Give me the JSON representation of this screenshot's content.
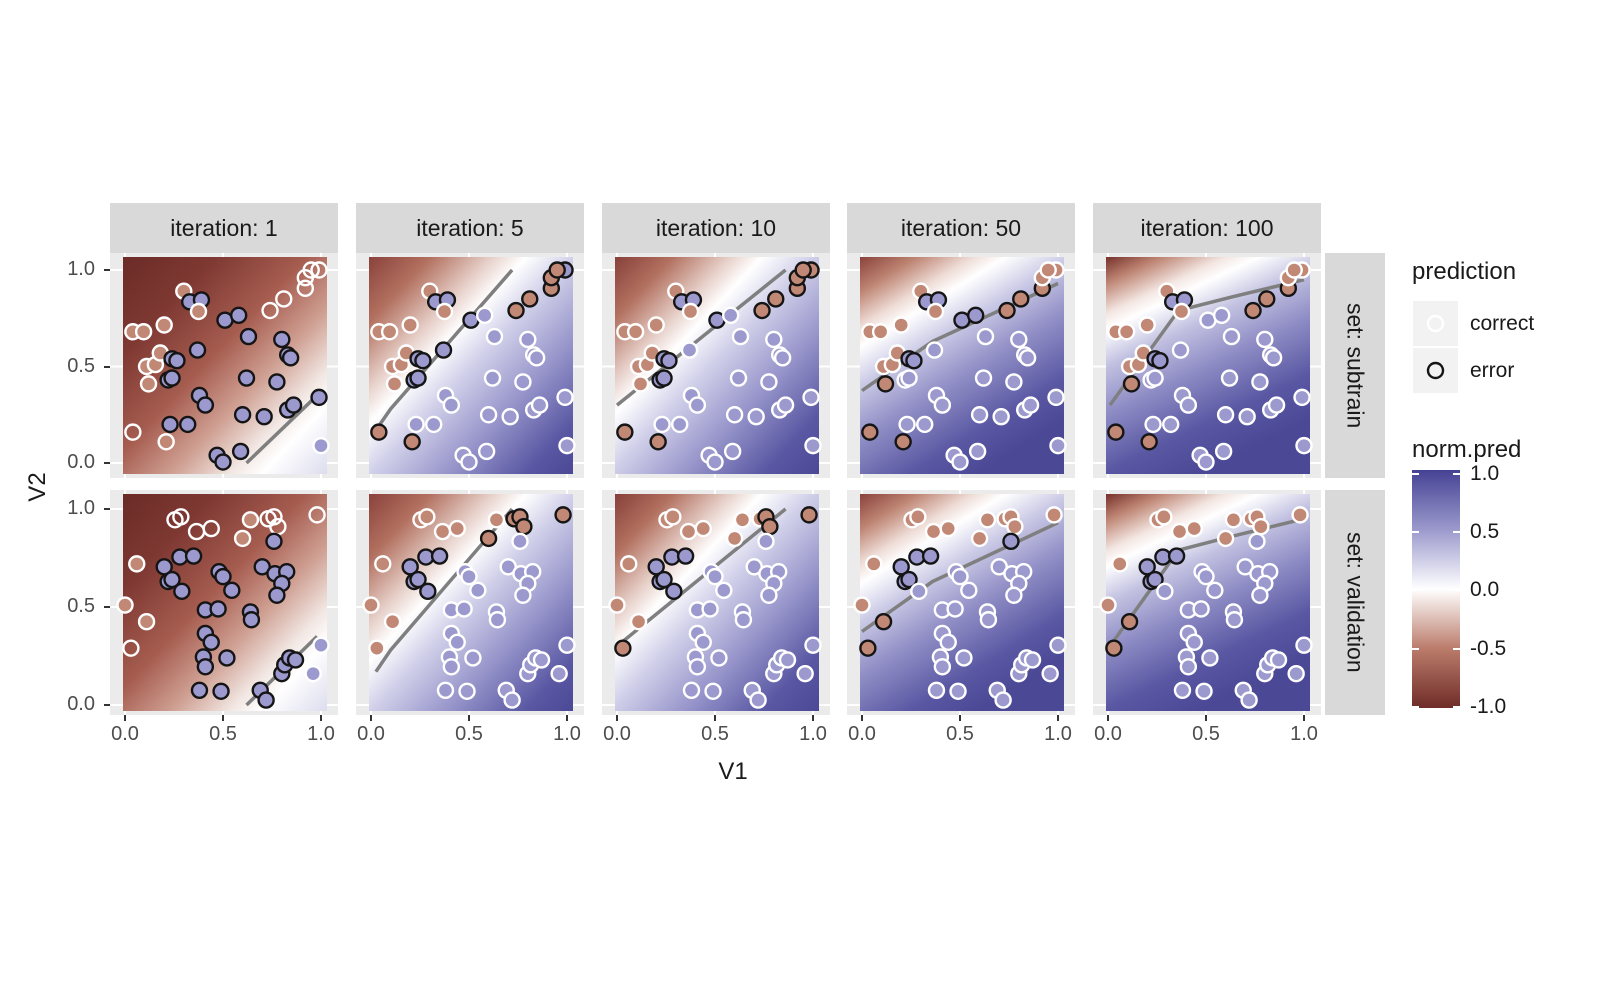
{
  "facets": {
    "cols": [
      "iteration: 1",
      "iteration: 5",
      "iteration: 10",
      "iteration: 50",
      "iteration: 100"
    ],
    "rows": [
      "set: subtrain",
      "set: validation"
    ]
  },
  "axes": {
    "x_title": "V1",
    "y_title": "V2",
    "x_tick_labels": [
      "0.0",
      "0.5",
      "1.0"
    ],
    "y_tick_labels": [
      "1.0",
      "0.5",
      "0.0"
    ],
    "x_range": [
      0,
      1
    ],
    "y_range": [
      0,
      1
    ]
  },
  "legend": {
    "prediction": {
      "title": "prediction",
      "items": [
        {
          "label": "correct",
          "stroke": "#ffffff"
        },
        {
          "label": "error",
          "stroke": "#151515"
        }
      ]
    },
    "colorbar": {
      "title": "norm.pred",
      "tick_labels": [
        "1.0",
        "0.5",
        "0.0",
        "-0.5",
        "-1.0"
      ],
      "top_color": "#454294",
      "mid_color": "#ffffff",
      "bottom_color": "#6f2c28"
    }
  },
  "palette": {
    "point_blue": "#9b99cd",
    "point_salmon": "#c18876",
    "stroke_correct": "#ffffff",
    "stroke_error": "#151515",
    "boundary": "#7f7f7f",
    "panel_bg": "#ebebeb",
    "strip_bg": "#d9d9d9",
    "grid": "#ffffff"
  },
  "chart_data": {
    "type": "scatter",
    "title": "",
    "xlabel": "V1",
    "ylabel": "V2",
    "x_range": [
      0,
      1
    ],
    "y_range": [
      0,
      1
    ],
    "iterations": [
      "1",
      "5",
      "10",
      "50",
      "100"
    ],
    "sets": [
      "subtrain",
      "validation"
    ],
    "style_codes": {
      "b": "blue fill",
      "s": "salmon fill",
      "n": "no fill",
      "w": "correct (white ring)",
      "k": "error (black ring)"
    },
    "subtrain": {
      "points": [
        [
          0.04,
          0.16
        ],
        [
          0.21,
          0.11
        ],
        [
          0.23,
          0.2
        ],
        [
          0.32,
          0.2
        ],
        [
          0.47,
          0.04
        ],
        [
          0.5,
          0.005
        ],
        [
          0.59,
          0.06
        ],
        [
          0.6,
          0.25
        ],
        [
          0.71,
          0.24
        ],
        [
          0.83,
          0.275
        ],
        [
          0.86,
          0.3
        ],
        [
          0.99,
          0.34
        ],
        [
          0.38,
          0.35
        ],
        [
          0.41,
          0.3
        ],
        [
          0.62,
          0.44
        ],
        [
          0.775,
          0.42
        ],
        [
          0.22,
          0.43
        ],
        [
          0.24,
          0.44
        ],
        [
          0.12,
          0.41
        ],
        [
          0.11,
          0.5
        ],
        [
          0.155,
          0.51
        ],
        [
          0.18,
          0.57
        ],
        [
          0.24,
          0.54
        ],
        [
          0.265,
          0.53
        ],
        [
          0.37,
          0.585
        ],
        [
          0.04,
          0.68
        ],
        [
          0.095,
          0.68
        ],
        [
          0.2,
          0.715
        ],
        [
          0.3,
          0.89
        ],
        [
          0.33,
          0.835
        ],
        [
          0.39,
          0.845
        ],
        [
          0.375,
          0.785
        ],
        [
          0.51,
          0.74
        ],
        [
          0.58,
          0.765
        ],
        [
          0.63,
          0.655
        ],
        [
          0.8,
          0.64
        ],
        [
          0.83,
          0.56
        ],
        [
          0.845,
          0.545
        ],
        [
          0.74,
          0.79
        ],
        [
          0.81,
          0.85
        ],
        [
          0.92,
          0.905
        ],
        [
          0.92,
          0.96
        ],
        [
          0.99,
          1.0
        ],
        [
          0.95,
          1.0
        ],
        [
          1.0,
          0.09
        ]
      ],
      "styles": {
        "1": [
          "nw",
          "sw",
          "bk",
          "bk",
          "bk",
          "bk",
          "bk",
          "bk",
          "bk",
          "bk",
          "bk",
          "bk",
          "bk",
          "bk",
          "bk",
          "bk",
          "bk",
          "bk",
          "sw",
          "sw",
          "sw",
          "sw",
          "bk",
          "bk",
          "bk",
          "sw",
          "sw",
          "sw",
          "sw",
          "bk",
          "bk",
          "sw",
          "bk",
          "bk",
          "bk",
          "bk",
          "bk",
          "bk",
          "nw",
          "nw",
          "nw",
          "nw",
          "nw",
          "nw",
          "bw"
        ],
        "5": [
          "sk",
          "sk",
          "bw",
          "bw",
          "bw",
          "bw",
          "bw",
          "bw",
          "bw",
          "bw",
          "bw",
          "bw",
          "bw",
          "bw",
          "bw",
          "bw",
          "bk",
          "bk",
          "sw",
          "sw",
          "sw",
          "sw",
          "bk",
          "bk",
          "bk",
          "sw",
          "sw",
          "sw",
          "sw",
          "bk",
          "bk",
          "sw",
          "bk",
          "bw",
          "bw",
          "bw",
          "bw",
          "bw",
          "sk",
          "sk",
          "sk",
          "sk",
          "bk",
          "sk",
          "bw"
        ],
        "10": [
          "sk",
          "sk",
          "bw",
          "bw",
          "bw",
          "bw",
          "bw",
          "bw",
          "bw",
          "bw",
          "bw",
          "bw",
          "bw",
          "bw",
          "bw",
          "bw",
          "bk",
          "bk",
          "sw",
          "sw",
          "sw",
          "sw",
          "bk",
          "bk",
          "bw",
          "sw",
          "sw",
          "sw",
          "sw",
          "bk",
          "bk",
          "sw",
          "bk",
          "bw",
          "bw",
          "bw",
          "bw",
          "bw",
          "sk",
          "sk",
          "sk",
          "sk",
          "sk",
          "sk",
          "bw"
        ],
        "50": [
          "sk",
          "sk",
          "bw",
          "bw",
          "bw",
          "bw",
          "bw",
          "bw",
          "bw",
          "bw",
          "bw",
          "bw",
          "bw",
          "bw",
          "bw",
          "bw",
          "bw",
          "bw",
          "sk",
          "sw",
          "sw",
          "sw",
          "bk",
          "bk",
          "bw",
          "sw",
          "sw",
          "sw",
          "sw",
          "bk",
          "bk",
          "sw",
          "bk",
          "bk",
          "bw",
          "bw",
          "bw",
          "bw",
          "sk",
          "sk",
          "sk",
          "sw",
          "sw",
          "sw",
          "bw"
        ],
        "100": [
          "sk",
          "sk",
          "bw",
          "bw",
          "bw",
          "bw",
          "bw",
          "bw",
          "bw",
          "bw",
          "bw",
          "bw",
          "bw",
          "bw",
          "bw",
          "bw",
          "bw",
          "bw",
          "sk",
          "sw",
          "sw",
          "sw",
          "bk",
          "bk",
          "bw",
          "sw",
          "sw",
          "sw",
          "sw",
          "bk",
          "bk",
          "sw",
          "bw",
          "bw",
          "bw",
          "bw",
          "bw",
          "bw",
          "sk",
          "sk",
          "sk",
          "sw",
          "sw",
          "sw",
          "bw"
        ]
      }
    },
    "validation": {
      "points": [
        [
          0.255,
          0.945
        ],
        [
          0.285,
          0.96
        ],
        [
          0.365,
          0.885
        ],
        [
          0.44,
          0.9
        ],
        [
          0.6,
          0.85
        ],
        [
          0.64,
          0.945
        ],
        [
          0.73,
          0.95
        ],
        [
          0.76,
          0.96
        ],
        [
          0.78,
          0.91
        ],
        [
          0.98,
          0.97
        ],
        [
          0.76,
          0.835
        ],
        [
          0.06,
          0.72
        ],
        [
          0.2,
          0.705
        ],
        [
          0.28,
          0.755
        ],
        [
          0.35,
          0.76
        ],
        [
          0.22,
          0.63
        ],
        [
          0.24,
          0.64
        ],
        [
          0.29,
          0.58
        ],
        [
          0.48,
          0.68
        ],
        [
          0.5,
          0.655
        ],
        [
          0.545,
          0.585
        ],
        [
          0.7,
          0.705
        ],
        [
          0.765,
          0.67
        ],
        [
          0.825,
          0.68
        ],
        [
          0.8,
          0.62
        ],
        [
          0.775,
          0.56
        ],
        [
          0.41,
          0.485
        ],
        [
          0.475,
          0.49
        ],
        [
          0.64,
          0.475
        ],
        [
          0.645,
          0.435
        ],
        [
          0.0,
          0.51
        ],
        [
          0.11,
          0.425
        ],
        [
          0.03,
          0.29
        ],
        [
          0.41,
          0.365
        ],
        [
          0.44,
          0.32
        ],
        [
          0.4,
          0.245
        ],
        [
          0.41,
          0.195
        ],
        [
          0.52,
          0.24
        ],
        [
          0.38,
          0.075
        ],
        [
          0.49,
          0.07
        ],
        [
          0.69,
          0.075
        ],
        [
          0.72,
          0.025
        ],
        [
          0.8,
          0.16
        ],
        [
          0.815,
          0.205
        ],
        [
          0.84,
          0.24
        ],
        [
          0.87,
          0.23
        ],
        [
          1.0,
          0.305
        ],
        [
          0.96,
          0.16
        ]
      ],
      "styles": {
        "1": [
          "nw",
          "nw",
          "nw",
          "nw",
          "sw",
          "sw",
          "nw",
          "nw",
          "nw",
          "nw",
          "bk",
          "sw",
          "bk",
          "bk",
          "bk",
          "bk",
          "bk",
          "bk",
          "bk",
          "bk",
          "bk",
          "bk",
          "bk",
          "bk",
          "bk",
          "bk",
          "bk",
          "bk",
          "bk",
          "bk",
          "sw",
          "sw",
          "nw",
          "bk",
          "bk",
          "bk",
          "bk",
          "bk",
          "bk",
          "bk",
          "bk",
          "bk",
          "bk",
          "bk",
          "bk",
          "bk",
          "bw",
          "bw"
        ],
        "5": [
          "sw",
          "sw",
          "sw",
          "sw",
          "sk",
          "sw",
          "sk",
          "sk",
          "sk",
          "sk",
          "bw",
          "sw",
          "bk",
          "bk",
          "bk",
          "bk",
          "bk",
          "bk",
          "bw",
          "bw",
          "bw",
          "bw",
          "bw",
          "bw",
          "bw",
          "bw",
          "bw",
          "bw",
          "bw",
          "bw",
          "sw",
          "sw",
          "sw",
          "bw",
          "bw",
          "bw",
          "bw",
          "bw",
          "bw",
          "bw",
          "bw",
          "bw",
          "bw",
          "bw",
          "bw",
          "bw",
          "bw",
          "bw"
        ],
        "10": [
          "sw",
          "sw",
          "sw",
          "sw",
          "sw",
          "sw",
          "sw",
          "sk",
          "sk",
          "sk",
          "bw",
          "sw",
          "bk",
          "bk",
          "bk",
          "bk",
          "bk",
          "bk",
          "bw",
          "bw",
          "bw",
          "bw",
          "bw",
          "bw",
          "bw",
          "bw",
          "bw",
          "bw",
          "bw",
          "bw",
          "sw",
          "sw",
          "sk",
          "bw",
          "bw",
          "bw",
          "bw",
          "bw",
          "bw",
          "bw",
          "bw",
          "bw",
          "bw",
          "bw",
          "bw",
          "bw",
          "bw",
          "bw"
        ],
        "50": [
          "sw",
          "sw",
          "sw",
          "sw",
          "sw",
          "sw",
          "sw",
          "sw",
          "sw",
          "sw",
          "bk",
          "sw",
          "bk",
          "bk",
          "bk",
          "bk",
          "bk",
          "bw",
          "bw",
          "bw",
          "bw",
          "bw",
          "bw",
          "bw",
          "bw",
          "bw",
          "bw",
          "bw",
          "bw",
          "bw",
          "sw",
          "sk",
          "sk",
          "bw",
          "bw",
          "bw",
          "bw",
          "bw",
          "bw",
          "bw",
          "bw",
          "bw",
          "bw",
          "bw",
          "bw",
          "bw",
          "bw",
          "bw"
        ],
        "100": [
          "sw",
          "sw",
          "sw",
          "sw",
          "sw",
          "sw",
          "sw",
          "sw",
          "sw",
          "sw",
          "bw",
          "sw",
          "bk",
          "bk",
          "bk",
          "bk",
          "bk",
          "bw",
          "bw",
          "bw",
          "bw",
          "bw",
          "bw",
          "bw",
          "bw",
          "bw",
          "bw",
          "bw",
          "bw",
          "bw",
          "sw",
          "sk",
          "sk",
          "bw",
          "bw",
          "bw",
          "bw",
          "bw",
          "bw",
          "bw",
          "bw",
          "bw",
          "bw",
          "bw",
          "bw",
          "bw",
          "bw",
          "bw"
        ]
      }
    },
    "boundaries": {
      "1": [
        [
          0.62,
          0.0
        ],
        [
          0.98,
          0.35
        ]
      ],
      "5": [
        [
          0.025,
          0.17
        ],
        [
          0.1,
          0.28
        ],
        [
          0.72,
          1.0
        ]
      ],
      "10": [
        [
          0.0,
          0.3
        ],
        [
          0.86,
          1.0
        ]
      ],
      "50": [
        [
          0.0,
          0.375
        ],
        [
          0.36,
          0.63
        ],
        [
          1.0,
          0.93
        ]
      ],
      "100": [
        [
          0.01,
          0.3
        ],
        [
          0.36,
          0.79
        ],
        [
          0.63,
          0.86
        ],
        [
          1.0,
          0.95
        ]
      ]
    },
    "backgrounds": {
      "1": {
        "vec": [
          0,
          0,
          1,
          1
        ],
        "stops": [
          [
            0,
            "#6b2b27"
          ],
          [
            0.22,
            "#7e3832"
          ],
          [
            0.45,
            "#a65d50"
          ],
          [
            0.62,
            "#cfa093"
          ],
          [
            0.76,
            "#f1e6e2"
          ],
          [
            0.84,
            "#ffffff"
          ],
          [
            1,
            "#dddcee"
          ]
        ]
      },
      "5": {
        "vec": [
          0,
          0,
          1,
          1
        ],
        "stops": [
          [
            0,
            "#8a423c"
          ],
          [
            0.15,
            "#b2705f"
          ],
          [
            0.3,
            "#e6cfc8"
          ],
          [
            0.385,
            "#ffffff"
          ],
          [
            0.5,
            "#d2d1ea"
          ],
          [
            0.68,
            "#9a98cc"
          ],
          [
            0.88,
            "#5a58a3"
          ],
          [
            1,
            "#4b4896"
          ]
        ]
      },
      "10": {
        "vec": [
          0,
          0,
          1,
          1
        ],
        "stops": [
          [
            0,
            "#87403a"
          ],
          [
            0.14,
            "#b2705f"
          ],
          [
            0.28,
            "#e6cfc8"
          ],
          [
            0.36,
            "#ffffff"
          ],
          [
            0.48,
            "#d2d1ea"
          ],
          [
            0.66,
            "#9a98cc"
          ],
          [
            0.86,
            "#5a58a3"
          ],
          [
            1,
            "#4b4896"
          ]
        ]
      },
      "50": {
        "vec": [
          0,
          0,
          0.58,
          1
        ],
        "stops": [
          [
            0,
            "#8a423c"
          ],
          [
            0.12,
            "#bd8371"
          ],
          [
            0.24,
            "#eedcd6"
          ],
          [
            0.31,
            "#ffffff"
          ],
          [
            0.45,
            "#c9c8e5"
          ],
          [
            0.62,
            "#9391c7"
          ],
          [
            0.85,
            "#5a58a3"
          ],
          [
            1,
            "#4b4896"
          ]
        ]
      },
      "100": {
        "vec": [
          0,
          0,
          0.45,
          1
        ],
        "stops": [
          [
            0,
            "#76312c"
          ],
          [
            0.1,
            "#bd8371"
          ],
          [
            0.22,
            "#f3e6e2"
          ],
          [
            0.28,
            "#ffffff"
          ],
          [
            0.42,
            "#c2c1e1"
          ],
          [
            0.6,
            "#8f8dc5"
          ],
          [
            0.82,
            "#5a58a3"
          ],
          [
            1,
            "#4b4896"
          ]
        ]
      }
    }
  }
}
